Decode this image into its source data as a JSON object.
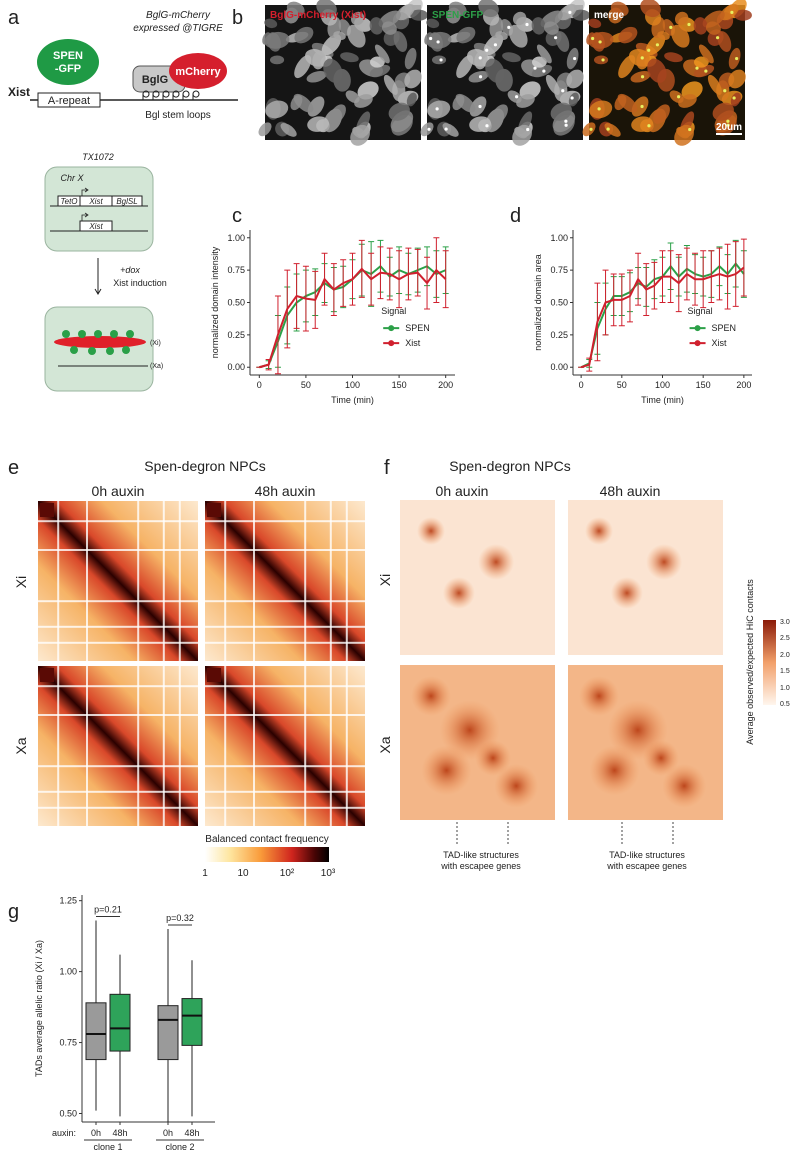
{
  "panel_labels": [
    "a",
    "b",
    "c",
    "d",
    "e",
    "f",
    "g"
  ],
  "panel_a": {
    "spen": [
      "SPEN",
      "-GFP"
    ],
    "bglg_note": [
      "BglG-mCherry",
      "expressed @TIGRE"
    ],
    "bglg": "BglG",
    "mcherry": "mCherry",
    "gene": "Xist",
    "repeat": "A-repeat",
    "stem_loops": "Bgl stem loops",
    "cell_line": "TX1072",
    "chromosome": "Chr X",
    "construct": [
      "TetO",
      "Xist",
      "BglSL"
    ],
    "xist_allele": "Xist",
    "treatment": [
      "+dox",
      "Xist induction"
    ],
    "xi": "(Xi)",
    "xa": "(Xa)"
  },
  "panel_b": {
    "labels": [
      "BglG-mCherry (Xist)",
      "SPEN-GFP",
      "merge"
    ],
    "scale_bar": "20um"
  },
  "panel_e": {
    "title": "Spen-degron NPCs",
    "columns": [
      "0h auxin",
      "48h auxin"
    ],
    "rows": [
      "Xi",
      "Xa"
    ],
    "colorbar_title": "Balanced contact frequency",
    "colorbar_ticks": [
      "1",
      "10",
      "10²",
      "10³"
    ]
  },
  "panel_f": {
    "title": "Spen-degron NPCs",
    "columns": [
      "0h auxin",
      "48h auxin"
    ],
    "rows": [
      "Xi",
      "Xa"
    ],
    "colorbar_title": "Average observed/expected HiC contacts",
    "colorbar_ticks": [
      "3.0",
      "2.5",
      "2.0",
      "1.5",
      "1.0",
      "0.5"
    ],
    "captions": [
      [
        "TAD-like structures",
        "with escapee genes"
      ],
      [
        "TAD-like structures",
        "with escapee genes"
      ]
    ]
  },
  "chart_data": [
    {
      "type": "line",
      "x_label": "Time (min)",
      "y_label": "normalized domain intensity",
      "legend_title": "Signal",
      "x": [
        0,
        10,
        20,
        30,
        40,
        50,
        60,
        70,
        80,
        90,
        100,
        110,
        120,
        130,
        140,
        150,
        160,
        170,
        180,
        190,
        200
      ],
      "xlim": [
        -10,
        210
      ],
      "xticks": [
        0,
        50,
        100,
        150,
        200
      ],
      "ylim": [
        -0.06,
        1.06
      ],
      "yticks": [
        {
          "value": 0,
          "label": "0.00"
        },
        {
          "value": 0.25,
          "label": "0.25"
        },
        {
          "value": 0.5,
          "label": "0.50"
        },
        {
          "value": 0.75,
          "label": "0.75"
        },
        {
          "value": 1,
          "label": "1.00"
        }
      ],
      "series": [
        {
          "name": "SPEN",
          "color": "#2ca048",
          "values": [
            0,
            0.02,
            0.2,
            0.4,
            0.5,
            0.55,
            0.58,
            0.65,
            0.6,
            0.62,
            0.68,
            0.75,
            0.72,
            0.78,
            0.7,
            0.75,
            0.72,
            0.75,
            0.78,
            0.72,
            0.75
          ],
          "errors": [
            0,
            0.03,
            0.2,
            0.22,
            0.22,
            0.2,
            0.18,
            0.15,
            0.17,
            0.16,
            0.15,
            0.2,
            0.25,
            0.2,
            0.15,
            0.18,
            0.16,
            0.17,
            0.15,
            0.18,
            0.18
          ]
        },
        {
          "name": "Xist",
          "color": "#d0202e",
          "values": [
            0,
            0.02,
            0.25,
            0.45,
            0.55,
            0.53,
            0.52,
            0.68,
            0.6,
            0.65,
            0.68,
            0.76,
            0.68,
            0.73,
            0.72,
            0.68,
            0.72,
            0.73,
            0.65,
            0.75,
            0.68
          ],
          "errors": [
            0,
            0.04,
            0.3,
            0.3,
            0.25,
            0.25,
            0.22,
            0.2,
            0.2,
            0.18,
            0.2,
            0.22,
            0.2,
            0.2,
            0.2,
            0.22,
            0.2,
            0.18,
            0.2,
            0.25,
            0.22
          ]
        }
      ]
    },
    {
      "type": "line",
      "x_label": "Time (min)",
      "y_label": "normalized domain area",
      "legend_title": "Signal",
      "x": [
        0,
        10,
        20,
        30,
        40,
        50,
        60,
        70,
        80,
        90,
        100,
        110,
        120,
        130,
        140,
        150,
        160,
        170,
        180,
        190,
        200
      ],
      "xlim": [
        -10,
        210
      ],
      "xticks": [
        0,
        50,
        100,
        150,
        200
      ],
      "ylim": [
        -0.06,
        1.06
      ],
      "yticks": [
        {
          "value": 0,
          "label": "0.00"
        },
        {
          "value": 0.25,
          "label": "0.25"
        },
        {
          "value": 0.5,
          "label": "0.50"
        },
        {
          "value": 0.75,
          "label": "0.75"
        },
        {
          "value": 1,
          "label": "1.00"
        }
      ],
      "series": [
        {
          "name": "SPEN",
          "color": "#2ca048",
          "values": [
            0,
            0.03,
            0.3,
            0.45,
            0.55,
            0.55,
            0.58,
            0.65,
            0.62,
            0.68,
            0.7,
            0.78,
            0.7,
            0.76,
            0.72,
            0.7,
            0.72,
            0.78,
            0.72,
            0.8,
            0.72
          ],
          "errors": [
            0,
            0.03,
            0.2,
            0.2,
            0.15,
            0.15,
            0.15,
            0.12,
            0.15,
            0.15,
            0.15,
            0.18,
            0.15,
            0.18,
            0.15,
            0.15,
            0.18,
            0.15,
            0.15,
            0.18,
            0.18
          ]
        },
        {
          "name": "Xist",
          "color": "#d0202e",
          "values": [
            0,
            0.02,
            0.35,
            0.5,
            0.52,
            0.52,
            0.55,
            0.68,
            0.6,
            0.63,
            0.7,
            0.7,
            0.65,
            0.72,
            0.68,
            0.68,
            0.7,
            0.72,
            0.7,
            0.72,
            0.77
          ],
          "errors": [
            0,
            0.05,
            0.3,
            0.25,
            0.2,
            0.2,
            0.2,
            0.2,
            0.2,
            0.18,
            0.2,
            0.2,
            0.22,
            0.2,
            0.2,
            0.22,
            0.2,
            0.2,
            0.25,
            0.25,
            0.22
          ]
        }
      ]
    },
    {
      "type": "box",
      "y_label": "TADs average allelic ratio (Xi / Xa)",
      "x_prefix": "auxin:",
      "categories": [
        "0h",
        "48h",
        "0h",
        "48h"
      ],
      "groups": [
        "clone 1",
        "clone 2"
      ],
      "colors": [
        "#9a9a9a",
        "#2ea35a",
        "#9a9a9a",
        "#2ea35a"
      ],
      "ylim": [
        0.47,
        1.27
      ],
      "yticks": [
        {
          "value": 0.5,
          "label": "0.50"
        },
        {
          "value": 0.75,
          "label": "0.75"
        },
        {
          "value": 1,
          "label": "1.00"
        },
        {
          "value": 1.25,
          "label": "1.25"
        }
      ],
      "boxes": [
        {
          "low": 0.51,
          "q1": 0.69,
          "median": 0.78,
          "q3": 0.89,
          "high": 1.18
        },
        {
          "low": 0.49,
          "q1": 0.72,
          "median": 0.8,
          "q3": 0.92,
          "high": 1.06
        },
        {
          "low": 0.46,
          "q1": 0.69,
          "median": 0.83,
          "q3": 0.88,
          "high": 1.15
        },
        {
          "low": 0.49,
          "q1": 0.74,
          "median": 0.845,
          "q3": 0.905,
          "high": 1.04
        }
      ],
      "annotations": [
        "p=0.21",
        "p=0.32"
      ]
    }
  ]
}
